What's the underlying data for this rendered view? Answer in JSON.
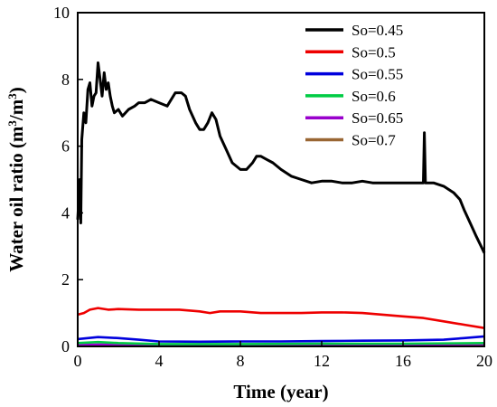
{
  "chart_data": {
    "type": "line",
    "xlabel": "Time (year)",
    "ylabel": "Water oil ratio  (m³/m³)",
    "ylabel_parts": {
      "main": "Water oil ratio  (m",
      "sup1": "3",
      "mid": "/m",
      "sup2": "3",
      "end": ")"
    },
    "xlim": [
      0,
      20
    ],
    "ylim": [
      0,
      10
    ],
    "xticks": [
      "0",
      "4",
      "8",
      "12",
      "16",
      "20"
    ],
    "yticks": [
      "0",
      "2",
      "4",
      "6",
      "8",
      "10"
    ],
    "grid": false,
    "legend_position": "top-right",
    "series": [
      {
        "name": "So=0.45",
        "color": "#000000",
        "x": [
          0,
          0.1,
          0.15,
          0.2,
          0.3,
          0.4,
          0.5,
          0.6,
          0.7,
          0.8,
          0.9,
          1.0,
          1.1,
          1.2,
          1.3,
          1.4,
          1.5,
          1.6,
          1.7,
          1.8,
          2.0,
          2.2,
          2.5,
          2.8,
          3.0,
          3.3,
          3.6,
          4.0,
          4.4,
          4.8,
          5.1,
          5.3,
          5.5,
          5.8,
          6.0,
          6.2,
          6.4,
          6.6,
          6.8,
          7.0,
          7.3,
          7.6,
          8.0,
          8.3,
          8.6,
          8.8,
          9.0,
          9.3,
          9.6,
          10.0,
          10.5,
          11.0,
          11.5,
          12.0,
          12.5,
          13.0,
          13.5,
          14.0,
          14.5,
          15.0,
          15.5,
          16.0,
          16.5,
          17.0,
          17.05,
          17.1,
          17.5,
          18.0,
          18.5,
          18.8,
          19.0,
          19.3,
          19.6,
          20.0
        ],
        "y": [
          3.8,
          5.0,
          3.7,
          6.2,
          7.0,
          6.7,
          7.7,
          7.9,
          7.2,
          7.5,
          7.6,
          8.5,
          8.0,
          7.5,
          8.2,
          7.7,
          7.9,
          7.5,
          7.2,
          7.0,
          7.1,
          6.9,
          7.1,
          7.2,
          7.3,
          7.3,
          7.4,
          7.3,
          7.2,
          7.6,
          7.6,
          7.5,
          7.1,
          6.7,
          6.5,
          6.5,
          6.7,
          7.0,
          6.8,
          6.3,
          5.9,
          5.5,
          5.3,
          5.3,
          5.5,
          5.7,
          5.7,
          5.6,
          5.5,
          5.3,
          5.1,
          5.0,
          4.9,
          4.95,
          4.95,
          4.9,
          4.9,
          4.95,
          4.9,
          4.9,
          4.9,
          4.9,
          4.9,
          4.9,
          6.4,
          4.9,
          4.9,
          4.8,
          4.6,
          4.4,
          4.1,
          3.7,
          3.3,
          2.8
        ]
      },
      {
        "name": "So=0.5",
        "color": "#ee0000",
        "x": [
          0,
          0.3,
          0.6,
          1.0,
          1.5,
          2.0,
          3.0,
          4.0,
          5.0,
          6.0,
          6.5,
          7.0,
          8.0,
          9.0,
          10.0,
          11.0,
          12.0,
          13.0,
          14.0,
          15.0,
          16.0,
          17.0,
          18.0,
          19.0,
          20.0
        ],
        "y": [
          0.95,
          1.0,
          1.1,
          1.15,
          1.1,
          1.12,
          1.1,
          1.1,
          1.1,
          1.05,
          1.0,
          1.05,
          1.05,
          1.0,
          1.0,
          1.0,
          1.02,
          1.02,
          1.0,
          0.95,
          0.9,
          0.85,
          0.75,
          0.65,
          0.55
        ]
      },
      {
        "name": "So=0.55",
        "color": "#0000dd",
        "x": [
          0,
          1.0,
          2.0,
          3.0,
          4.0,
          6.0,
          8.0,
          10.0,
          12.0,
          14.0,
          16.0,
          18.0,
          19.0,
          20.0
        ],
        "y": [
          0.22,
          0.28,
          0.25,
          0.2,
          0.15,
          0.14,
          0.15,
          0.15,
          0.16,
          0.17,
          0.18,
          0.2,
          0.25,
          0.3
        ]
      },
      {
        "name": "So=0.6",
        "color": "#00cc44",
        "x": [
          0,
          1.0,
          2.0,
          4.0,
          8.0,
          12.0,
          16.0,
          20.0
        ],
        "y": [
          0.1,
          0.13,
          0.1,
          0.07,
          0.07,
          0.08,
          0.08,
          0.1
        ]
      },
      {
        "name": "So=0.65",
        "color": "#9900cc",
        "x": [
          0,
          2.0,
          4.0,
          8.0,
          12.0,
          16.0,
          20.0
        ],
        "y": [
          0.05,
          0.06,
          0.05,
          0.05,
          0.05,
          0.06,
          0.07
        ]
      },
      {
        "name": "So=0.7",
        "color": "#996633",
        "x": [
          0,
          4.0,
          8.0,
          12.0,
          16.0,
          20.0
        ],
        "y": [
          0.02,
          0.03,
          0.03,
          0.03,
          0.03,
          0.03
        ]
      }
    ]
  }
}
